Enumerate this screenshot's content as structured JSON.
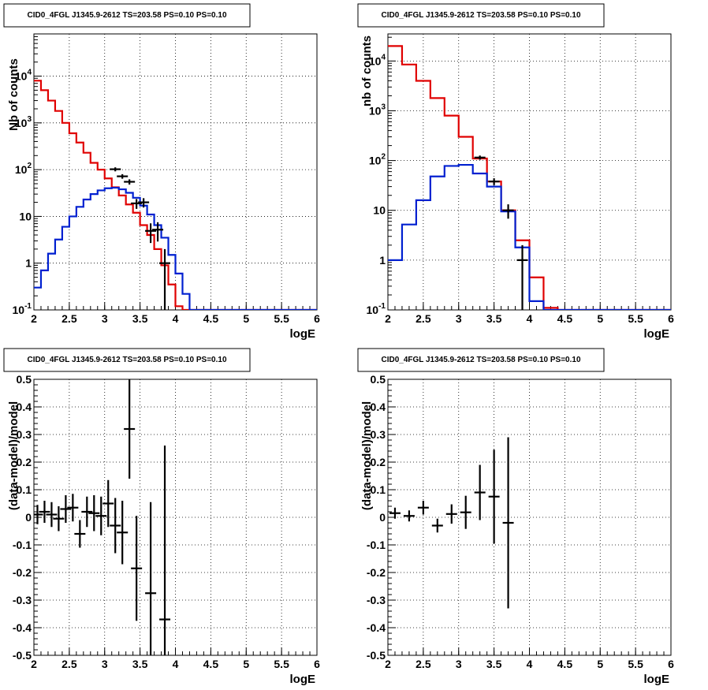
{
  "colors": {
    "data": "#000000",
    "model_total": "#e00000",
    "model_source": "#0020d0",
    "grid": "#000000"
  },
  "chart_data": [
    {
      "type": "line",
      "panel": "top-left",
      "title": "CID0_4FGL J1345.9-2612 TS=203.58 PS=0.10 PS=0.10",
      "xlabel": "logE",
      "ylabel": "Nb of counts",
      "xlim": [
        2,
        6
      ],
      "ylim": [
        0.1,
        80000
      ],
      "log_y": true,
      "grid": true,
      "x_ticks": [
        "2",
        "2.5",
        "3",
        "3.5",
        "4",
        "4.5",
        "5",
        "5.5",
        "6"
      ],
      "y_ticks": [
        {
          "v": 0.1,
          "label": "10^-1"
        },
        {
          "v": 1,
          "label": "1"
        },
        {
          "v": 10,
          "label": "10"
        },
        {
          "v": 100,
          "label": "10^2"
        },
        {
          "v": 1000,
          "label": "10^3"
        },
        {
          "v": 10000,
          "label": "10^4"
        }
      ],
      "bin_edges": [
        2.0,
        2.1,
        2.2,
        2.3,
        2.4,
        2.5,
        2.6,
        2.7,
        2.8,
        2.9,
        3.0,
        3.1,
        3.2,
        3.3,
        3.4,
        3.5,
        3.6,
        3.7,
        3.8,
        3.9,
        4.0,
        4.1,
        4.2,
        4.3,
        4.4,
        4.5,
        4.6,
        4.7,
        4.8,
        4.9,
        5.0,
        5.1,
        5.2,
        5.3,
        5.4,
        5.5,
        5.6,
        5.7,
        5.8,
        5.9,
        6.0
      ],
      "series": [
        {
          "role": "model_total",
          "values": [
            8000,
            5000,
            3000,
            1800,
            1000,
            600,
            380,
            230,
            140,
            100,
            65,
            42,
            28,
            18,
            12,
            6.5,
            4,
            2,
            0.9,
            0.35,
            0.12,
            0.1,
            0.1,
            0.1,
            0.1,
            0.1,
            0.1,
            0.1,
            0.1,
            0.1,
            0.1,
            0.1,
            0.1,
            0.1,
            0.1,
            0.1,
            0.1,
            0.1,
            0.1,
            0.1
          ]
        },
        {
          "role": "model_source",
          "values": [
            0.3,
            0.7,
            1.6,
            3.2,
            6,
            10,
            16,
            23,
            30,
            36,
            40,
            41,
            38,
            32,
            25,
            17,
            11,
            6.5,
            3.5,
            1.5,
            0.6,
            0.22,
            0.1,
            0.1,
            0.1,
            0.1,
            0.1,
            0.1,
            0.1,
            0.1,
            0.1,
            0.1,
            0.1,
            0.1,
            0.1,
            0.1,
            0.1,
            0.1,
            0.1,
            0.1
          ]
        },
        {
          "role": "data",
          "points": [
            {
              "x": 3.15,
              "y": 102,
              "err": 10
            },
            {
              "x": 3.25,
              "y": 72,
              "err": 8
            },
            {
              "x": 3.35,
              "y": 55,
              "err": 7
            },
            {
              "x": 3.45,
              "y": 19,
              "err": 4.5
            },
            {
              "x": 3.55,
              "y": 20,
              "err": 4.5
            },
            {
              "x": 3.65,
              "y": 4.9,
              "err": 2.2
            },
            {
              "x": 3.75,
              "y": 5.2,
              "err": 2.3
            },
            {
              "x": 3.85,
              "y": 1.0,
              "err": 1.0
            }
          ]
        }
      ]
    },
    {
      "type": "line",
      "panel": "top-right",
      "title": "CID0_4FGL J1345.9-2612 TS=203.58 PS=0.10 PS=0.10",
      "xlabel": "logE",
      "ylabel": "nb of counts",
      "xlim": [
        2,
        6
      ],
      "ylim": [
        0.1,
        35000
      ],
      "log_y": true,
      "grid": true,
      "x_ticks": [
        "2",
        "2.5",
        "3",
        "3.5",
        "4",
        "4.5",
        "5",
        "5.5",
        "6"
      ],
      "y_ticks": [
        {
          "v": 0.1,
          "label": "10^-1"
        },
        {
          "v": 1,
          "label": "1"
        },
        {
          "v": 10,
          "label": "10"
        },
        {
          "v": 100,
          "label": "10^2"
        },
        {
          "v": 1000,
          "label": "10^3"
        },
        {
          "v": 10000,
          "label": "10^4"
        }
      ],
      "bin_edges": [
        2.0,
        2.2,
        2.4,
        2.6,
        2.8,
        3.0,
        3.2,
        3.4,
        3.6,
        3.8,
        4.0,
        4.2,
        4.4,
        4.6,
        4.8,
        5.0,
        5.2,
        5.4,
        5.6,
        5.8,
        6.0
      ],
      "series": [
        {
          "role": "model_total",
          "values": [
            20000,
            8500,
            4000,
            1800,
            800,
            300,
            110,
            38,
            10,
            2.5,
            0.45,
            0.11,
            0.1,
            0.1,
            0.1,
            0.1,
            0.1,
            0.1,
            0.1,
            0.1
          ]
        },
        {
          "role": "model_source",
          "values": [
            1.0,
            5.2,
            16,
            48,
            78,
            82,
            55,
            30,
            9.5,
            1.8,
            0.15,
            0.1,
            0.1,
            0.1,
            0.1,
            0.1,
            0.1,
            0.1,
            0.1,
            0.1
          ]
        },
        {
          "role": "data",
          "points": [
            {
              "x": 3.3,
              "y": 115,
              "err": 11
            },
            {
              "x": 3.5,
              "y": 38,
              "err": 6
            },
            {
              "x": 3.7,
              "y": 10,
              "err": 3.2
            },
            {
              "x": 3.9,
              "y": 1.0,
              "err": 1.0
            }
          ]
        }
      ]
    },
    {
      "type": "scatter",
      "panel": "bottom-left",
      "title": "CID0_4FGL J1345.9-2612 TS=203.58 PS=0.10 PS=0.10",
      "xlabel": "logE",
      "ylabel": "(data-model)/model",
      "xlim": [
        2,
        6
      ],
      "ylim": [
        -0.5,
        0.5
      ],
      "grid": true,
      "x_ticks": [
        "2",
        "2.5",
        "3",
        "3.5",
        "4",
        "4.5",
        "5",
        "5.5",
        "6"
      ],
      "y_ticks": [
        "-0.5",
        "-0.4",
        "-0.3",
        "-0.2",
        "-0.1",
        "0",
        "0.1",
        "0.2",
        "0.3",
        "0.4",
        "0.5"
      ],
      "points": [
        {
          "x": 2.05,
          "y": 0.01,
          "err": 0.035
        },
        {
          "x": 2.15,
          "y": 0.02,
          "err": 0.04
        },
        {
          "x": 2.25,
          "y": 0.01,
          "err": 0.045
        },
        {
          "x": 2.35,
          "y": -0.005,
          "err": 0.045
        },
        {
          "x": 2.45,
          "y": 0.03,
          "err": 0.05
        },
        {
          "x": 2.55,
          "y": 0.035,
          "err": 0.05
        },
        {
          "x": 2.65,
          "y": -0.06,
          "err": 0.05
        },
        {
          "x": 2.75,
          "y": 0.02,
          "err": 0.055
        },
        {
          "x": 2.85,
          "y": 0.015,
          "err": 0.065
        },
        {
          "x": 2.95,
          "y": 0.005,
          "err": 0.07
        },
        {
          "x": 3.05,
          "y": 0.05,
          "err": 0.085
        },
        {
          "x": 3.15,
          "y": -0.03,
          "err": 0.1
        },
        {
          "x": 3.25,
          "y": -0.055,
          "err": 0.115
        },
        {
          "x": 3.35,
          "y": 0.32,
          "err": 0.18
        },
        {
          "x": 3.45,
          "y": -0.185,
          "err": 0.19
        },
        {
          "x": 3.65,
          "y": -0.275,
          "err": 0.33
        },
        {
          "x": 3.85,
          "y": -0.37,
          "err": 0.63
        }
      ]
    },
    {
      "type": "scatter",
      "panel": "bottom-right",
      "title": "CID0_4FGL J1345.9-2612 TS=203.58 PS=0.10 PS=0.10",
      "xlabel": "logE",
      "ylabel": "(data-model)/model",
      "xlim": [
        2,
        6
      ],
      "ylim": [
        -0.5,
        0.5
      ],
      "grid": true,
      "x_ticks": [
        "2",
        "2.5",
        "3",
        "3.5",
        "4",
        "4.5",
        "5",
        "5.5",
        "6"
      ],
      "y_ticks": [
        "-0.5",
        "-0.4",
        "-0.3",
        "-0.2",
        "-0.1",
        "0",
        "0.1",
        "0.2",
        "0.3",
        "0.4",
        "0.5"
      ],
      "points": [
        {
          "x": 2.1,
          "y": 0.015,
          "err": 0.02
        },
        {
          "x": 2.3,
          "y": 0.005,
          "err": 0.02
        },
        {
          "x": 2.5,
          "y": 0.035,
          "err": 0.025
        },
        {
          "x": 2.7,
          "y": -0.03,
          "err": 0.025
        },
        {
          "x": 2.9,
          "y": 0.012,
          "err": 0.035
        },
        {
          "x": 3.1,
          "y": 0.018,
          "err": 0.06
        },
        {
          "x": 3.3,
          "y": 0.09,
          "err": 0.1
        },
        {
          "x": 3.5,
          "y": 0.075,
          "err": 0.17
        },
        {
          "x": 3.7,
          "y": -0.02,
          "err": 0.31
        }
      ]
    }
  ]
}
